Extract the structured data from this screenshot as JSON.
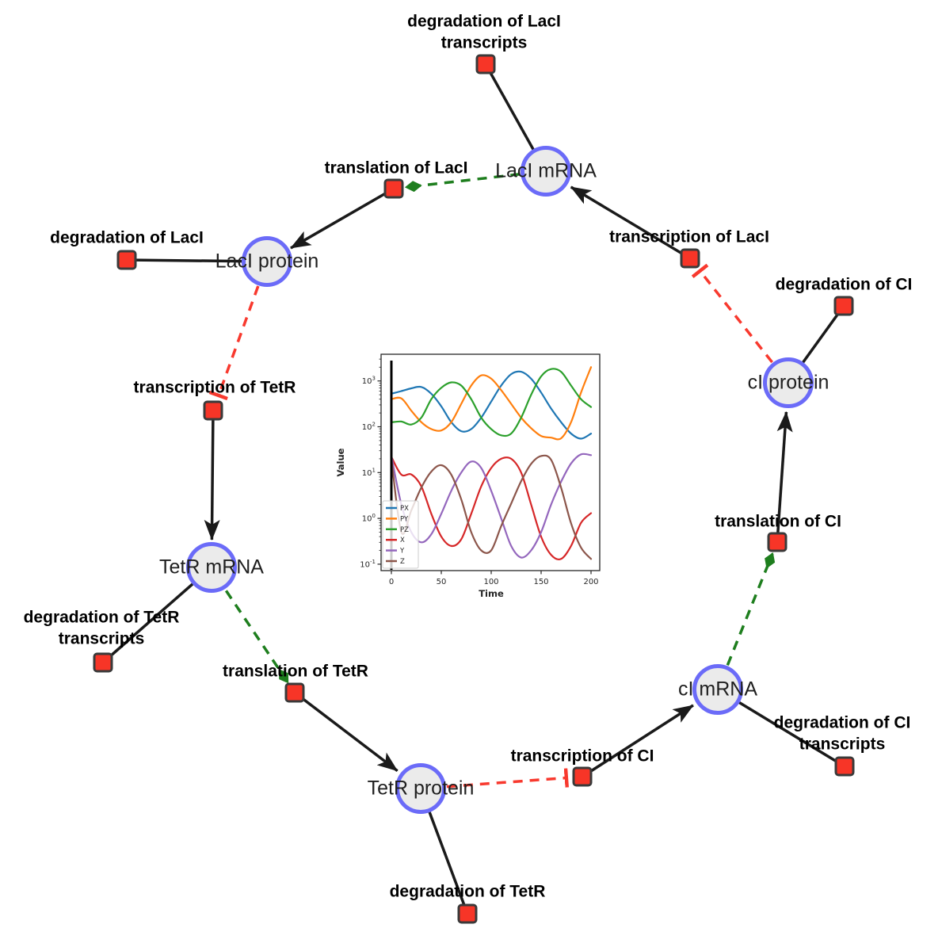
{
  "figure": {
    "background": "#ffffff",
    "description": "Repressilator gene regulatory network diagram with inset time-course plot"
  },
  "network": {
    "species": [
      {
        "id": "laci-mrna",
        "label": "LacI mRNA"
      },
      {
        "id": "laci-protein",
        "label": "LacI protein"
      },
      {
        "id": "ci-protein",
        "label": "cI protein"
      },
      {
        "id": "tetr-mrna",
        "label": "TetR mRNA"
      },
      {
        "id": "ci-mrna",
        "label": "cI mRNA"
      },
      {
        "id": "tetr-protein",
        "label": "TetR protein"
      }
    ],
    "reactions": [
      {
        "id": "deg-laci-transcripts",
        "label": "degradation of LacI transcripts"
      },
      {
        "id": "translation-laci",
        "label": "translation of LacI"
      },
      {
        "id": "transcription-laci",
        "label": "transcription of LacI"
      },
      {
        "id": "deg-laci",
        "label": "degradation of LacI"
      },
      {
        "id": "deg-ci",
        "label": "degradation of CI"
      },
      {
        "id": "transcription-tetr",
        "label": "transcription of TetR"
      },
      {
        "id": "translation-ci",
        "label": "translation of CI"
      },
      {
        "id": "deg-tetr-transcripts",
        "label": "degradation of TetR transcripts"
      },
      {
        "id": "translation-tetr",
        "label": "translation of TetR"
      },
      {
        "id": "deg-ci-transcripts",
        "label": "degradation of CI transcripts"
      },
      {
        "id": "transcription-ci",
        "label": "transcription of CI"
      },
      {
        "id": "deg-tetr",
        "label": "degradation of TetR"
      }
    ],
    "colors": {
      "species_fill": "#ebebeb",
      "species_border": "#6b6bf8",
      "reaction_fill": "#f73527",
      "reaction_border": "#3a3a3a",
      "edge_black": "#1a1a1a",
      "edge_activation_green": "#1e7e1e",
      "edge_inhibition_red": "#f8392e"
    }
  },
  "chart_data": {
    "type": "line",
    "title": "",
    "xlabel": "Time",
    "ylabel": "Value",
    "x_ticks": [
      0,
      50,
      100,
      150,
      200
    ],
    "xlim": [
      0,
      200
    ],
    "y_scale": "log",
    "y_tick_exponents": [
      -1,
      0,
      1,
      2,
      3
    ],
    "ylim_log10": [
      -1.14,
      3.58
    ],
    "grid": false,
    "legend_position": "lower left",
    "t0_marker_line": true,
    "series": [
      {
        "name": "PX",
        "color": "#1f77b4",
        "points": [
          [
            0,
            525
          ],
          [
            10,
            600
          ],
          [
            20,
            690
          ],
          [
            30,
            740
          ],
          [
            40,
            525
          ],
          [
            50,
            280
          ],
          [
            60,
            126
          ],
          [
            70,
            80
          ],
          [
            80,
            89
          ],
          [
            90,
            158
          ],
          [
            100,
            355
          ],
          [
            110,
            794
          ],
          [
            120,
            1410
          ],
          [
            130,
            1585
          ],
          [
            140,
            1120
          ],
          [
            150,
            560
          ],
          [
            160,
            250
          ],
          [
            170,
            126
          ],
          [
            180,
            71
          ],
          [
            190,
            55
          ],
          [
            200,
            71
          ]
        ]
      },
      {
        "name": "PY",
        "color": "#ff7f0e",
        "points": [
          [
            0,
            400
          ],
          [
            10,
            417
          ],
          [
            20,
            224
          ],
          [
            30,
            126
          ],
          [
            40,
            89
          ],
          [
            50,
            83
          ],
          [
            60,
            126
          ],
          [
            70,
            316
          ],
          [
            80,
            794
          ],
          [
            90,
            1320
          ],
          [
            100,
            1122
          ],
          [
            110,
            631
          ],
          [
            120,
            316
          ],
          [
            130,
            158
          ],
          [
            140,
            93
          ],
          [
            150,
            63
          ],
          [
            160,
            58
          ],
          [
            170,
            56
          ],
          [
            180,
            126
          ],
          [
            190,
            560
          ],
          [
            200,
            2000
          ]
        ]
      },
      {
        "name": "PZ",
        "color": "#2ca02c",
        "points": [
          [
            0,
            125
          ],
          [
            10,
            130
          ],
          [
            20,
            112
          ],
          [
            30,
            158
          ],
          [
            40,
            400
          ],
          [
            50,
            710
          ],
          [
            60,
            930
          ],
          [
            70,
            794
          ],
          [
            80,
            400
          ],
          [
            90,
            158
          ],
          [
            100,
            89
          ],
          [
            110,
            65
          ],
          [
            120,
            71
          ],
          [
            130,
            158
          ],
          [
            140,
            500
          ],
          [
            150,
            1260
          ],
          [
            160,
            1820
          ],
          [
            170,
            1585
          ],
          [
            180,
            794
          ],
          [
            190,
            400
          ],
          [
            200,
            270
          ]
        ]
      },
      {
        "name": "X",
        "color": "#d62728",
        "points": [
          [
            0,
            22
          ],
          [
            10,
            9
          ],
          [
            20,
            9.1
          ],
          [
            30,
            5
          ],
          [
            40,
            1.26
          ],
          [
            50,
            0.4
          ],
          [
            60,
            0.25
          ],
          [
            70,
            0.35
          ],
          [
            80,
            1.26
          ],
          [
            90,
            5
          ],
          [
            100,
            12.6
          ],
          [
            110,
            20
          ],
          [
            120,
            20
          ],
          [
            130,
            10
          ],
          [
            140,
            2
          ],
          [
            150,
            0.4
          ],
          [
            160,
            0.16
          ],
          [
            170,
            0.13
          ],
          [
            180,
            0.25
          ],
          [
            190,
            0.8
          ],
          [
            200,
            1.3
          ]
        ]
      },
      {
        "name": "Y",
        "color": "#9467bd",
        "points": [
          [
            0,
            23
          ],
          [
            10,
            2
          ],
          [
            20,
            0.5
          ],
          [
            30,
            0.3
          ],
          [
            40,
            0.45
          ],
          [
            50,
            1.26
          ],
          [
            60,
            4
          ],
          [
            70,
            10
          ],
          [
            80,
            17.4
          ],
          [
            90,
            12.6
          ],
          [
            100,
            4
          ],
          [
            110,
            1.0
          ],
          [
            120,
            0.25
          ],
          [
            130,
            0.14
          ],
          [
            140,
            0.2
          ],
          [
            150,
            0.5
          ],
          [
            160,
            2
          ],
          [
            170,
            6.3
          ],
          [
            180,
            15.8
          ],
          [
            190,
            25
          ],
          [
            200,
            24
          ]
        ]
      },
      {
        "name": "Z",
        "color": "#8c564b",
        "points": [
          [
            0,
            20
          ],
          [
            10,
            0.5
          ],
          [
            20,
            1.5
          ],
          [
            30,
            4.7
          ],
          [
            40,
            10.5
          ],
          [
            50,
            14.5
          ],
          [
            60,
            9
          ],
          [
            70,
            2.6
          ],
          [
            80,
            0.5
          ],
          [
            90,
            0.2
          ],
          [
            100,
            0.2
          ],
          [
            110,
            0.68
          ],
          [
            120,
            2.1
          ],
          [
            130,
            6.5
          ],
          [
            140,
            15.5
          ],
          [
            150,
            23
          ],
          [
            160,
            19
          ],
          [
            170,
            4.7
          ],
          [
            180,
            0.78
          ],
          [
            190,
            0.23
          ],
          [
            200,
            0.13
          ]
        ]
      }
    ]
  }
}
